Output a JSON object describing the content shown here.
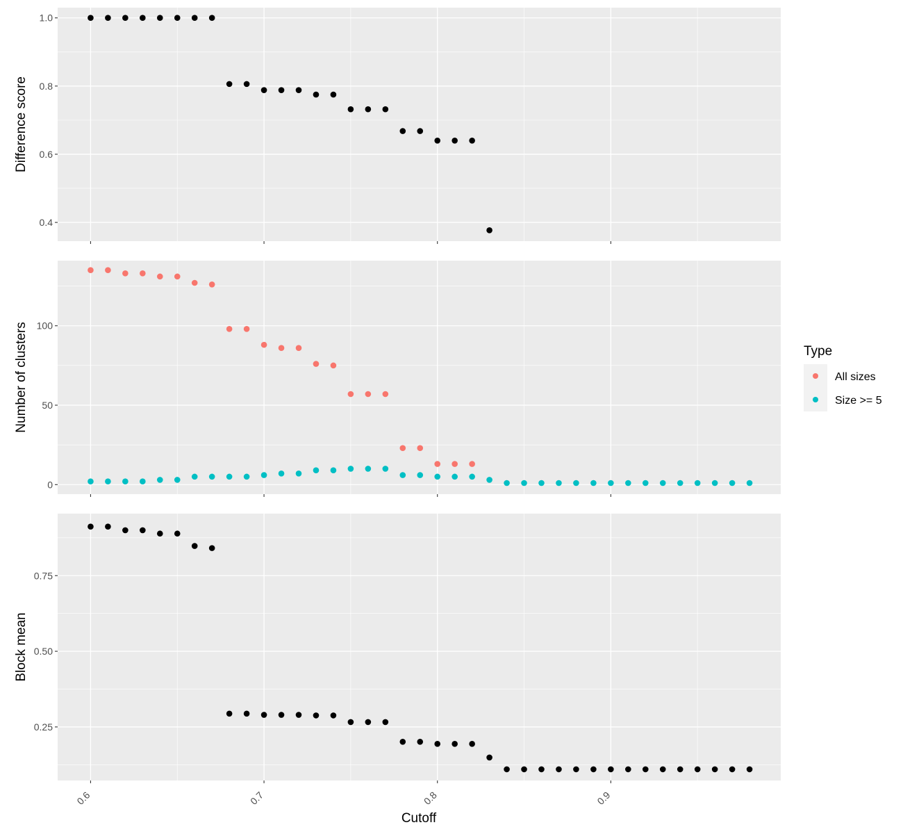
{
  "chart_data": {
    "type": "scatter",
    "x_axis": {
      "label": "Cutoff",
      "ticks": [
        "0.6",
        "0.7",
        "0.8",
        "0.9"
      ],
      "range": [
        0.581,
        0.998
      ]
    },
    "colors": {
      "panel_background": "#ebebeb",
      "grid": "#ffffff",
      "single_series": "#000000",
      "all_sizes": "#F8766D",
      "size_ge_5": "#00BFC4"
    },
    "legend": {
      "title": "Type",
      "placement": "right",
      "entries": [
        {
          "label": "All sizes",
          "color": "#F8766D"
        },
        {
          "label": "Size >= 5",
          "color": "#00BFC4"
        }
      ]
    },
    "panels": [
      {
        "ylabel": "Difference score",
        "ylim": [
          0.345,
          1.03
        ],
        "yticks": [
          "0.4",
          "0.6",
          "0.8",
          "1.0"
        ],
        "series": [
          {
            "x": [
              0.6,
              0.61,
              0.62,
              0.63,
              0.64,
              0.65,
              0.66,
              0.67,
              0.68,
              0.69,
              0.7,
              0.71,
              0.72,
              0.73,
              0.74,
              0.75,
              0.76,
              0.77,
              0.78,
              0.79,
              0.8,
              0.81,
              0.82,
              0.83
            ],
            "values": [
              1.0,
              1.0,
              1.0,
              1.0,
              1.0,
              1.0,
              1.0,
              1.0,
              0.806,
              0.806,
              0.788,
              0.788,
              0.788,
              0.775,
              0.775,
              0.732,
              0.732,
              0.732,
              0.668,
              0.668,
              0.64,
              0.64,
              0.64,
              0.377
            ]
          }
        ]
      },
      {
        "ylabel": "Number of clusters",
        "ylim": [
          -6,
          141
        ],
        "yticks": [
          "0",
          "50",
          "100"
        ],
        "series": [
          {
            "name": "All sizes",
            "x": [
              0.6,
              0.61,
              0.62,
              0.63,
              0.64,
              0.65,
              0.66,
              0.67,
              0.68,
              0.69,
              0.7,
              0.71,
              0.72,
              0.73,
              0.74,
              0.75,
              0.76,
              0.77,
              0.78,
              0.79,
              0.8,
              0.81,
              0.82
            ],
            "values": [
              135,
              135,
              133,
              133,
              131,
              131,
              127,
              126,
              98,
              98,
              88,
              86,
              86,
              76,
              75,
              57,
              57,
              57,
              23,
              23,
              13,
              13,
              13
            ]
          },
          {
            "name": "Size >= 5",
            "x": [
              0.6,
              0.61,
              0.62,
              0.63,
              0.64,
              0.65,
              0.66,
              0.67,
              0.68,
              0.69,
              0.7,
              0.71,
              0.72,
              0.73,
              0.74,
              0.75,
              0.76,
              0.77,
              0.78,
              0.79,
              0.8,
              0.81,
              0.82,
              0.83,
              0.84,
              0.85,
              0.86,
              0.87,
              0.88,
              0.89,
              0.9,
              0.91,
              0.92,
              0.93,
              0.94,
              0.95,
              0.96,
              0.97,
              0.98
            ],
            "values": [
              2,
              2,
              2,
              2,
              3,
              3,
              5,
              5,
              5,
              5,
              6,
              7,
              7,
              9,
              9,
              10,
              10,
              10,
              6,
              6,
              5,
              5,
              5,
              3,
              1,
              1,
              1,
              1,
              1,
              1,
              1,
              1,
              1,
              1,
              1,
              1,
              1,
              1,
              1
            ]
          }
        ]
      },
      {
        "ylabel": "Block mean",
        "ylim": [
          0.073,
          0.955
        ],
        "yticks": [
          "0.25",
          "0.50",
          "0.75"
        ],
        "series": [
          {
            "x": [
              0.6,
              0.61,
              0.62,
              0.63,
              0.64,
              0.65,
              0.66,
              0.67,
              0.68,
              0.69,
              0.7,
              0.71,
              0.72,
              0.73,
              0.74,
              0.75,
              0.76,
              0.77,
              0.78,
              0.79,
              0.8,
              0.81,
              0.82,
              0.83,
              0.84,
              0.85,
              0.86,
              0.87,
              0.88,
              0.89,
              0.9,
              0.91,
              0.92,
              0.93,
              0.94,
              0.95,
              0.96,
              0.97,
              0.98
            ],
            "values": [
              0.912,
              0.912,
              0.9,
              0.9,
              0.889,
              0.889,
              0.848,
              0.841,
              0.294,
              0.294,
              0.29,
              0.29,
              0.29,
              0.288,
              0.288,
              0.266,
              0.266,
              0.266,
              0.201,
              0.201,
              0.194,
              0.194,
              0.194,
              0.149,
              0.11,
              0.11,
              0.11,
              0.11,
              0.11,
              0.11,
              0.11,
              0.11,
              0.11,
              0.11,
              0.11,
              0.11,
              0.11,
              0.11,
              0.11
            ]
          }
        ]
      }
    ]
  }
}
